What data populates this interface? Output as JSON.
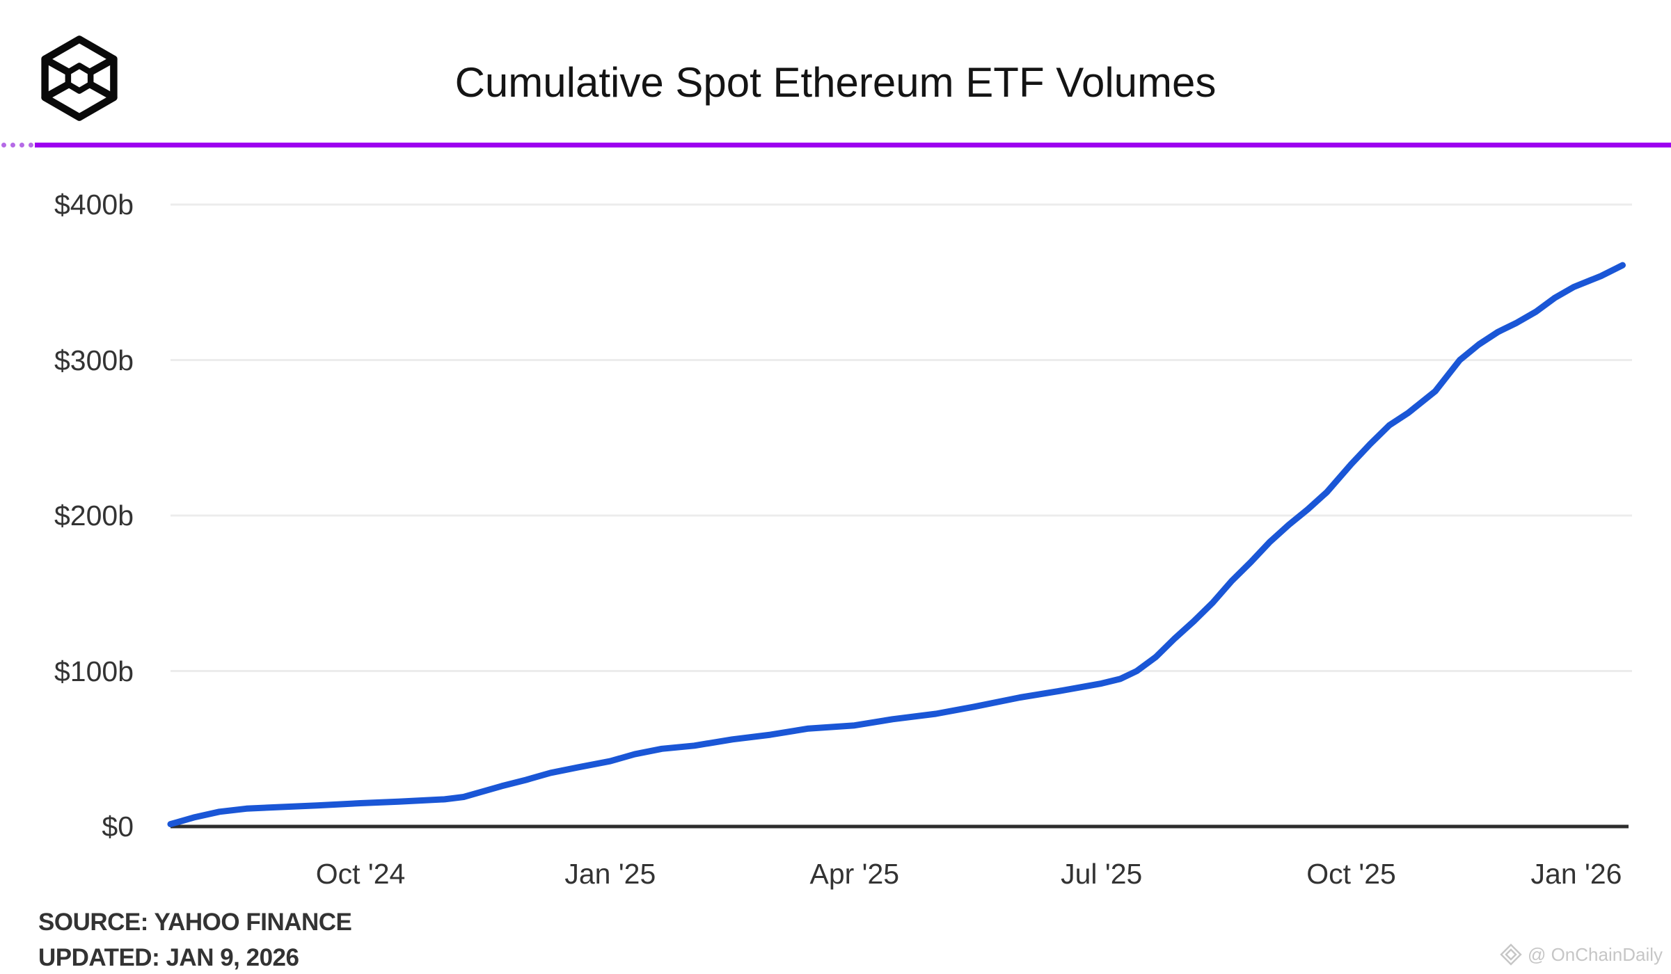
{
  "header": {
    "title": "Cumulative Spot Ethereum ETF Volumes",
    "logo": "cube-logo"
  },
  "footer": {
    "source": "SOURCE: YAHOO FINANCE",
    "updated": "UPDATED: JAN 9, 2026"
  },
  "watermark": {
    "icon": "diamond-ornament-icon",
    "text": "@ OnChainDaily"
  },
  "colors": {
    "line_blue": "#1a56d6",
    "divider_purple": "#9d00f0",
    "grid_gray": "#ececec",
    "axis_dark": "#2d2d2d",
    "label_gray": "#333333",
    "watermark_gray": "#c6c6c6"
  },
  "chart_data": {
    "type": "line",
    "title": "Cumulative Spot Ethereum ETF Volumes",
    "series_name": "Cumulative spot Ethereum ETF volume ($ billions)",
    "grid": "horizontal-only",
    "legend": "none",
    "xlabel": "",
    "ylabel": "",
    "ylim": [
      0,
      430
    ],
    "x_range": [
      "2024-07-23",
      "2026-01-09"
    ],
    "y_ticks": [
      {
        "label": "$0",
        "value": 0
      },
      {
        "label": "$100b",
        "value": 100
      },
      {
        "label": "$200b",
        "value": 200
      },
      {
        "label": "$300b",
        "value": 300
      },
      {
        "label": "$400b",
        "value": 400
      }
    ],
    "x_ticks": [
      {
        "label": "Oct '24",
        "date": "2024-10-01"
      },
      {
        "label": "Jan '25",
        "date": "2025-01-01"
      },
      {
        "label": "Apr '25",
        "date": "2025-04-01"
      },
      {
        "label": "Jul '25",
        "date": "2025-07-01"
      },
      {
        "label": "Oct '25",
        "date": "2025-10-01"
      },
      {
        "label": "Jan '26",
        "date": "2026-01-01"
      }
    ],
    "dates": [
      "2024-07-23",
      "2024-08-01",
      "2024-08-10",
      "2024-08-20",
      "2024-09-01",
      "2024-09-15",
      "2024-10-01",
      "2024-10-15",
      "2024-11-01",
      "2024-11-08",
      "2024-11-14",
      "2024-11-22",
      "2024-12-01",
      "2024-12-10",
      "2024-12-20",
      "2025-01-01",
      "2025-01-10",
      "2025-01-20",
      "2025-02-01",
      "2025-02-15",
      "2025-03-01",
      "2025-03-15",
      "2025-04-01",
      "2025-04-15",
      "2025-05-01",
      "2025-05-15",
      "2025-06-01",
      "2025-06-15",
      "2025-07-01",
      "2025-07-08",
      "2025-07-14",
      "2025-07-21",
      "2025-07-28",
      "2025-08-04",
      "2025-08-11",
      "2025-08-18",
      "2025-08-25",
      "2025-09-01",
      "2025-09-08",
      "2025-09-15",
      "2025-09-22",
      "2025-10-01",
      "2025-10-08",
      "2025-10-15",
      "2025-10-22",
      "2025-11-01",
      "2025-11-10",
      "2025-11-17",
      "2025-11-24",
      "2025-12-01",
      "2025-12-08",
      "2025-12-15",
      "2025-12-22",
      "2026-01-01",
      "2026-01-09"
    ],
    "values": [
      1.5,
      6,
      9.5,
      11.5,
      12.5,
      13.5,
      15,
      16,
      17.5,
      19,
      22,
      26,
      30,
      34.5,
      38,
      42,
      46.5,
      50,
      52,
      56,
      59,
      63,
      65,
      69,
      72.5,
      77,
      83,
      87,
      92,
      95,
      100,
      109,
      121,
      132,
      144,
      158,
      170,
      183,
      194,
      204,
      215,
      233,
      246,
      258,
      266,
      280,
      300,
      310,
      318,
      324,
      331,
      340,
      347,
      354,
      361
    ]
  }
}
